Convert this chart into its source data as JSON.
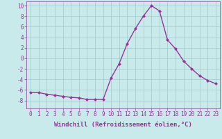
{
  "xlabel": "Windchill (Refroidissement éolien,°C)",
  "hours": [
    0,
    1,
    2,
    3,
    4,
    5,
    6,
    7,
    8,
    9,
    10,
    11,
    12,
    13,
    14,
    15,
    16,
    17,
    18,
    19,
    20,
    21,
    22,
    23
  ],
  "values": [
    -6.5,
    -6.5,
    -6.8,
    -7.0,
    -7.2,
    -7.4,
    -7.5,
    -7.8,
    -7.8,
    -7.8,
    -3.7,
    -1.0,
    2.8,
    5.6,
    8.0,
    10.0,
    9.0,
    3.5,
    1.8,
    -0.5,
    -2.0,
    -3.3,
    -4.2,
    -4.8
  ],
  "line_color": "#993399",
  "marker": "D",
  "marker_size": 2,
  "bg_color": "#c8eaea",
  "grid_color": "#a0c8c8",
  "ylim": [
    -9.5,
    10.8
  ],
  "yticks": [
    -8,
    -6,
    -4,
    -2,
    0,
    2,
    4,
    6,
    8,
    10
  ],
  "xlim": [
    -0.5,
    23.5
  ],
  "label_fontsize": 6.5,
  "tick_fontsize": 5.5,
  "line_width": 1.0
}
